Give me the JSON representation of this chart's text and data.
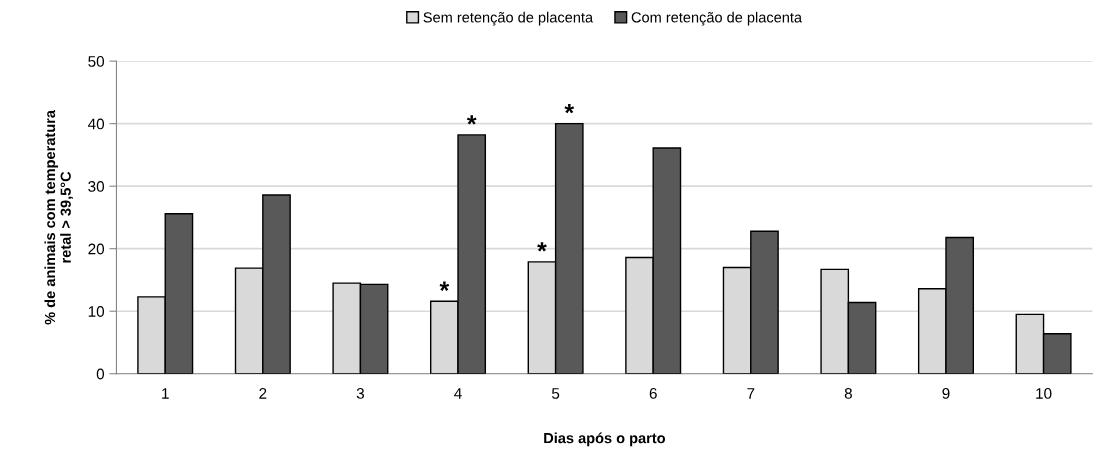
{
  "chart_data": {
    "type": "bar",
    "xlabel": "Dias após o parto",
    "ylabel": "% de animais com temperatura\nretal > 39,5°C",
    "categories": [
      "1",
      "2",
      "3",
      "4",
      "5",
      "6",
      "7",
      "8",
      "9",
      "10"
    ],
    "series": [
      {
        "name": "Sem retenção de placenta",
        "color": "#d9d9d9",
        "values": [
          12.3,
          16.9,
          14.5,
          11.6,
          17.9,
          18.6,
          17.0,
          16.7,
          13.6,
          9.5
        ]
      },
      {
        "name": "Com retenção de placenta",
        "color": "#595959",
        "values": [
          25.6,
          28.6,
          14.3,
          38.2,
          40.0,
          36.1,
          22.8,
          11.4,
          21.8,
          6.4
        ]
      }
    ],
    "ylim": [
      0,
      50
    ],
    "yticks": [
      0,
      10,
      20,
      30,
      40,
      50
    ],
    "grid": "y",
    "legend": "top",
    "annotations": [
      {
        "text": "*",
        "x": "4",
        "y": 11.6
      },
      {
        "text": "*",
        "x": "4",
        "y": 38.2
      },
      {
        "text": "*",
        "x": "5",
        "y": 17.9
      },
      {
        "text": "*",
        "x": "5",
        "y": 40.0
      }
    ]
  }
}
